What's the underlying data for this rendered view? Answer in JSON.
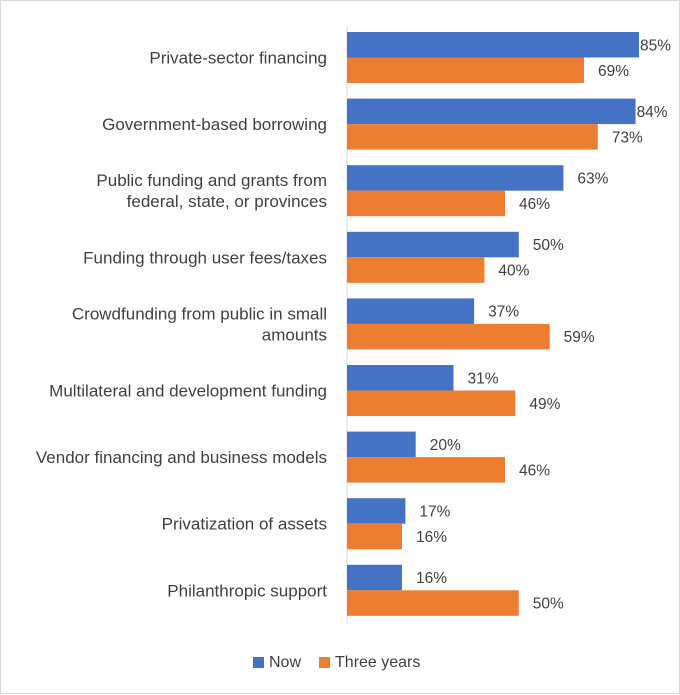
{
  "chart_data": {
    "type": "bar",
    "orientation": "horizontal",
    "categories": [
      [
        "Private-sector financing"
      ],
      [
        "Government-based borrowing"
      ],
      [
        "Public funding and grants from",
        "federal, state, or provinces"
      ],
      [
        "Funding through user fees/taxes"
      ],
      [
        "Crowdfunding from public in small",
        "amounts"
      ],
      [
        "Multilateral and development funding"
      ],
      [
        "Vendor financing and business models"
      ],
      [
        "Privatization of assets"
      ],
      [
        "Philanthropic support"
      ]
    ],
    "series": [
      {
        "name": "Now",
        "color": "#4472c4",
        "values": [
          85,
          84,
          63,
          50,
          37,
          31,
          20,
          17,
          16
        ],
        "labels": [
          "85%",
          "84%",
          "63%",
          "50%",
          "37%",
          "31%",
          "20%",
          "17%",
          "16%"
        ]
      },
      {
        "name": "Three years",
        "color": "#ed7d31",
        "values": [
          69,
          73,
          46,
          40,
          59,
          49,
          46,
          16,
          50
        ],
        "labels": [
          "69%",
          "73%",
          "46%",
          "40%",
          "59%",
          "49%",
          "46%",
          "16%",
          "50%"
        ]
      }
    ],
    "xlim": [
      0,
      85
    ],
    "grid": false,
    "legend_position": "bottom"
  }
}
